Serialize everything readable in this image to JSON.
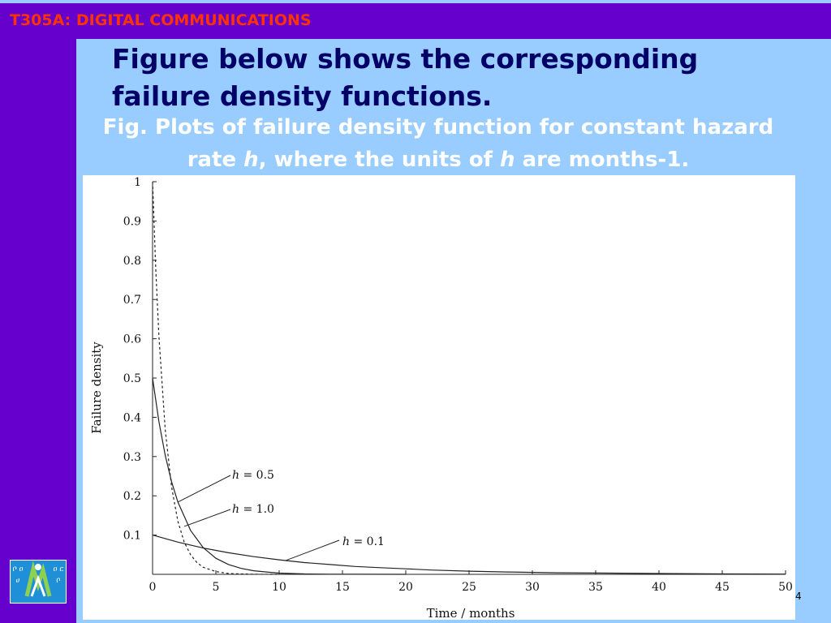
{
  "header": {
    "title": "T305A: DIGITAL COMMUNICATIONS"
  },
  "slide": {
    "heading": "Figure below shows the corresponding failure density functions.",
    "caption": {
      "part1": "Fig. Plots of failure density function for constant hazard rate ",
      "h1": "h",
      "part2": ", where the units of ",
      "h2": "h",
      "part3": " are months-1."
    },
    "page_number": "4"
  },
  "logo": {
    "left_glyphs": "ቦ ዐ ሀ",
    "right_glyphs": "ዐ ር ቦ"
  },
  "chart_data": {
    "type": "line",
    "title": "",
    "xlabel": "Time / months",
    "ylabel": "Failure density",
    "xlim": [
      0,
      50
    ],
    "ylim": [
      0,
      1
    ],
    "x_ticks": [
      0,
      5,
      10,
      15,
      20,
      25,
      30,
      35,
      40,
      45,
      50
    ],
    "y_ticks": [
      0.1,
      0.2,
      0.3,
      0.4,
      0.5,
      0.6,
      0.7,
      0.8,
      0.9,
      1
    ],
    "y_tick_labels": [
      "0.1",
      "0.2",
      "0.3",
      "0.4",
      "0.5",
      "0.6",
      "0.7",
      "0.8",
      "0.9",
      "1"
    ],
    "grid": false,
    "series": [
      {
        "label": "h = 1.0",
        "h": 1.0,
        "style": "dashed",
        "x": [
          0,
          0.25,
          0.5,
          1,
          1.5,
          2,
          2.5,
          3,
          3.5,
          4,
          5,
          6,
          7,
          8,
          10
        ],
        "y": [
          1,
          0.779,
          0.607,
          0.368,
          0.223,
          0.135,
          0.082,
          0.05,
          0.03,
          0.018,
          0.007,
          0.002,
          0.001,
          0.0003,
          0
        ]
      },
      {
        "label": "h = 0.5",
        "h": 0.5,
        "style": "solid",
        "x": [
          0,
          0.5,
          1,
          1.5,
          2,
          3,
          4,
          5,
          6,
          7,
          8,
          9,
          10,
          12,
          14,
          16,
          20
        ],
        "y": [
          0.5,
          0.389,
          0.303,
          0.236,
          0.184,
          0.112,
          0.068,
          0.041,
          0.025,
          0.015,
          0.009,
          0.006,
          0.003,
          0.001,
          0.0005,
          0.0002,
          0
        ]
      },
      {
        "label": "h = 0.1",
        "h": 0.1,
        "style": "solid",
        "x": [
          0,
          2,
          4,
          6,
          8,
          10,
          12,
          14,
          16,
          18,
          20,
          22,
          25,
          28,
          32,
          36,
          40,
          45,
          50
        ],
        "y": [
          0.1,
          0.082,
          0.067,
          0.055,
          0.045,
          0.037,
          0.03,
          0.025,
          0.02,
          0.017,
          0.014,
          0.011,
          0.008,
          0.006,
          0.004,
          0.003,
          0.002,
          0.001,
          0.0007
        ]
      }
    ],
    "annotations": [
      {
        "text": "h = 0.5",
        "italic": "h",
        "rest": " = 0.5",
        "points_to": {
          "x": 2,
          "y": 0.184
        }
      },
      {
        "text": "h = 1.0",
        "italic": "h",
        "rest": " = 1.0",
        "points_to": {
          "x": 2.5,
          "y": 0.122
        }
      },
      {
        "text": "h = 0.1",
        "italic": "h",
        "rest": " = 0.1",
        "points_to": {
          "x": 10.5,
          "y": 0.035
        }
      }
    ]
  }
}
